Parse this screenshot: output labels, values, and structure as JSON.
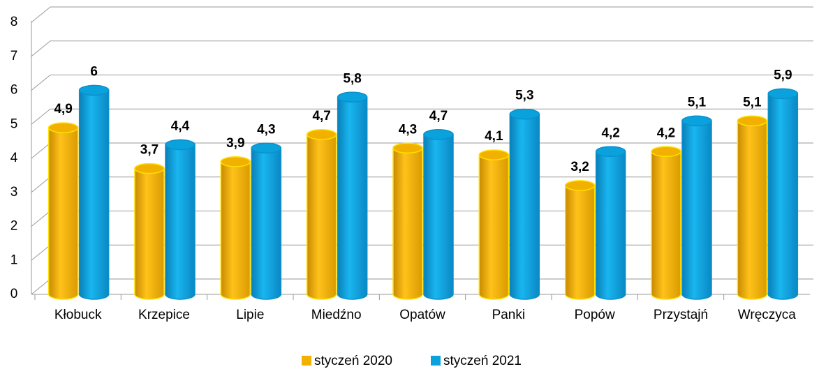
{
  "chart_data": {
    "type": "bar",
    "categories": [
      "Kłobuck",
      "Krzepice",
      "Lipie",
      "Miedźno",
      "Opatów",
      "Panki",
      "Popów",
      "Przystajń",
      "Wręczyca"
    ],
    "series": [
      {
        "name": "styczeń 2020",
        "color": "#f2b100",
        "values": [
          4.9,
          3.7,
          3.9,
          4.7,
          4.3,
          4.1,
          3.2,
          4.2,
          5.1
        ],
        "value_labels": [
          "4,9",
          "3,7",
          "3,9",
          "4,7",
          "4,3",
          "4,1",
          "3,2",
          "4,2",
          "5,1"
        ]
      },
      {
        "name": "styczeń 2021",
        "color": "#0aa2dc",
        "values": [
          6,
          4.4,
          4.3,
          5.8,
          4.7,
          5.3,
          4.2,
          5.1,
          5.9
        ],
        "value_labels": [
          "6",
          "4,4",
          "4,3",
          "5,8",
          "4,7",
          "5,3",
          "4,2",
          "5,1",
          "5,9"
        ]
      }
    ],
    "ylim": [
      0,
      8
    ],
    "yticks": [
      0,
      1,
      2,
      3,
      4,
      5,
      6,
      7,
      8
    ],
    "grid": true,
    "legend": "bottom"
  }
}
